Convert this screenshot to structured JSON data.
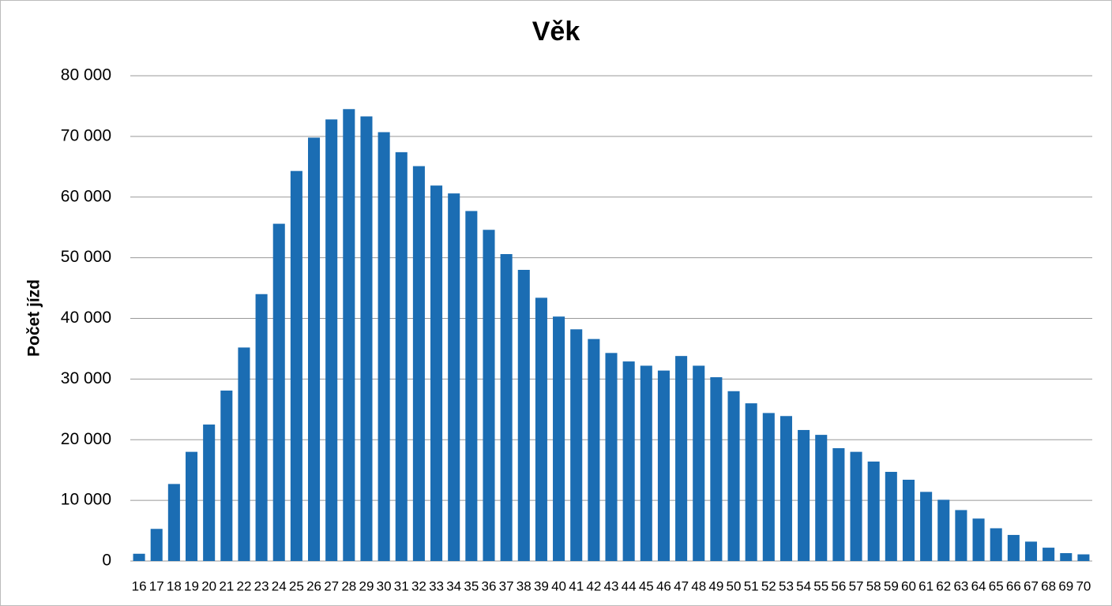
{
  "chart_data": {
    "type": "bar",
    "title": "Věk",
    "y_label": "Počet jízd",
    "categories": [
      "16",
      "17",
      "18",
      "19",
      "20",
      "21",
      "22",
      "23",
      "24",
      "25",
      "26",
      "27",
      "28",
      "29",
      "30",
      "31",
      "32",
      "33",
      "34",
      "35",
      "36",
      "37",
      "38",
      "39",
      "40",
      "41",
      "42",
      "43",
      "44",
      "45",
      "46",
      "47",
      "48",
      "49",
      "50",
      "51",
      "52",
      "53",
      "54",
      "55",
      "56",
      "57",
      "58",
      "59",
      "60",
      "61",
      "62",
      "63",
      "64",
      "65",
      "66",
      "67",
      "68",
      "69",
      "70"
    ],
    "values": [
      1200,
      5300,
      12700,
      18000,
      22500,
      28100,
      35200,
      44000,
      55600,
      64300,
      69800,
      72800,
      74500,
      73300,
      70700,
      67400,
      65100,
      61900,
      60600,
      57700,
      54600,
      50600,
      48000,
      43400,
      40300,
      38200,
      36600,
      34300,
      32900,
      32200,
      31400,
      33800,
      32200,
      30300,
      28000,
      26000,
      24400,
      23900,
      21600,
      20800,
      18600,
      18000,
      16400,
      14700,
      13400,
      11400,
      10100,
      8400,
      7000,
      5400,
      4300,
      3200,
      2200,
      1300,
      1100
    ],
    "color": "#1b6db3",
    "ylim": [
      0,
      80000
    ],
    "yticks": [
      0,
      {
        "value": 10000,
        "label": "10 000"
      },
      {
        "value": 20000,
        "label": "20 000"
      },
      {
        "value": 30000,
        "label": "30 000"
      },
      {
        "value": 40000,
        "label": "40 000"
      },
      {
        "value": 50000,
        "label": "50 000"
      },
      {
        "value": 60000,
        "label": "60 000"
      },
      {
        "value": 70000,
        "label": "70 000"
      },
      {
        "value": 80000,
        "label": "80 000"
      }
    ],
    "grid": true
  }
}
